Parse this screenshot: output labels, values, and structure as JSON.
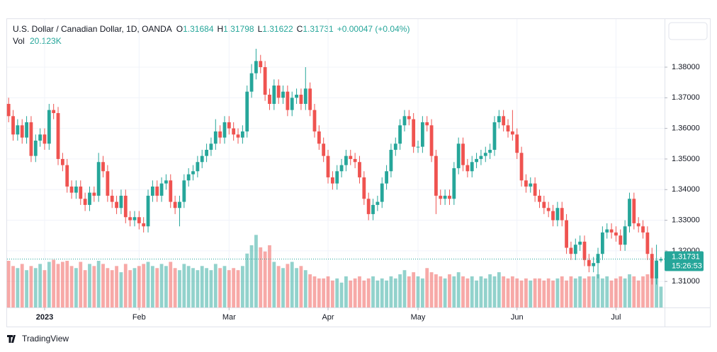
{
  "chart_data": {
    "type": "candlestick",
    "legend": {
      "title": "U.S. Dollar / Canadian Dollar, 1D, OANDA",
      "items": [
        {
          "label": "O",
          "value": "1.31684"
        },
        {
          "label": "H",
          "value": "1.31798"
        },
        {
          "label": "L",
          "value": "1.31622"
        },
        {
          "label": "C",
          "value": "1.31731"
        }
      ],
      "change": "+0.00047 (+0.04%)",
      "volume_label": "Vol",
      "volume_value": "20.123K"
    },
    "up_color": "#26a69a",
    "down_color": "#ef5350",
    "ylim": [
      1.3015,
      1.3957
    ],
    "yticks": [
      {
        "value": 1.31,
        "label": "1.31000"
      },
      {
        "value": 1.32,
        "label": "1.32000"
      },
      {
        "value": 1.33,
        "label": "1.33000"
      },
      {
        "value": 1.34,
        "label": "1.34000"
      },
      {
        "value": 1.35,
        "label": "1.35000"
      },
      {
        "value": 1.36,
        "label": "1.36000"
      },
      {
        "value": 1.37,
        "label": "1.37000"
      },
      {
        "value": 1.38,
        "label": "1.38000"
      }
    ],
    "xticks": [
      {
        "value": 8,
        "label": "2023"
      },
      {
        "value": 29,
        "label": "Feb"
      },
      {
        "value": 49,
        "label": "Mar"
      },
      {
        "value": 71,
        "label": "Apr"
      },
      {
        "value": 91,
        "label": "May"
      },
      {
        "value": 113,
        "label": "Jun"
      },
      {
        "value": 135,
        "label": "Jul"
      }
    ],
    "grid": true,
    "open": [
      1.368,
      1.364,
      1.358,
      1.361,
      1.357,
      1.362,
      1.351,
      1.356,
      1.358,
      1.355,
      1.366,
      1.365,
      1.35,
      1.348,
      1.341,
      1.339,
      1.341,
      1.337,
      1.335,
      1.339,
      1.338,
      1.349,
      1.346,
      1.338,
      1.336,
      1.334,
      1.338,
      1.331,
      1.33,
      1.331,
      1.329,
      1.328,
      1.338,
      1.341,
      1.338,
      1.342,
      1.343,
      1.336,
      1.334,
      1.336,
      1.343,
      1.345,
      1.346,
      1.349,
      1.351,
      1.353,
      1.355,
      1.359,
      1.357,
      1.362,
      1.36,
      1.358,
      1.357,
      1.359,
      1.372,
      1.378,
      1.382,
      1.38,
      1.371,
      1.368,
      1.374,
      1.37,
      1.372,
      1.366,
      1.37,
      1.371,
      1.368,
      1.373,
      1.366,
      1.359,
      1.355,
      1.351,
      1.344,
      1.342,
      1.346,
      1.348,
      1.351,
      1.35,
      1.349,
      1.344,
      1.337,
      1.332,
      1.335,
      1.336,
      1.342,
      1.346,
      1.353,
      1.355,
      1.361,
      1.364,
      1.363,
      1.354,
      1.354,
      1.362,
      1.361,
      1.351,
      1.338,
      1.337,
      1.338,
      1.337,
      1.347,
      1.355,
      1.348,
      1.346,
      1.349,
      1.35,
      1.351,
      1.352,
      1.353,
      1.362,
      1.364,
      1.361,
      1.359,
      1.358,
      1.352,
      1.343,
      1.341,
      1.342,
      1.338,
      1.336,
      1.334,
      1.333,
      1.33,
      1.334,
      1.33,
      1.321,
      1.319,
      1.322,
      1.323,
      1.317,
      1.315,
      1.316,
      1.319,
      1.326,
      1.327,
      1.326,
      1.325,
      1.322,
      1.328,
      1.337,
      1.329,
      1.328,
      1.326,
      1.319,
      1.311,
      1.31684
    ],
    "high": [
      1.37,
      1.366,
      1.363,
      1.363,
      1.364,
      1.364,
      1.358,
      1.36,
      1.36,
      1.368,
      1.368,
      1.367,
      1.352,
      1.35,
      1.343,
      1.343,
      1.343,
      1.339,
      1.341,
      1.341,
      1.352,
      1.351,
      1.348,
      1.34,
      1.338,
      1.34,
      1.34,
      1.333,
      1.333,
      1.333,
      1.331,
      1.34,
      1.343,
      1.343,
      1.344,
      1.345,
      1.345,
      1.338,
      1.338,
      1.345,
      1.347,
      1.348,
      1.351,
      1.353,
      1.355,
      1.357,
      1.363,
      1.361,
      1.364,
      1.364,
      1.362,
      1.36,
      1.361,
      1.374,
      1.381,
      1.386,
      1.384,
      1.382,
      1.373,
      1.376,
      1.376,
      1.374,
      1.374,
      1.372,
      1.373,
      1.373,
      1.38,
      1.375,
      1.368,
      1.361,
      1.357,
      1.353,
      1.346,
      1.348,
      1.35,
      1.353,
      1.353,
      1.352,
      1.351,
      1.346,
      1.339,
      1.337,
      1.338,
      1.344,
      1.348,
      1.355,
      1.357,
      1.363,
      1.366,
      1.366,
      1.365,
      1.356,
      1.364,
      1.364,
      1.363,
      1.353,
      1.34,
      1.34,
      1.34,
      1.349,
      1.357,
      1.357,
      1.35,
      1.351,
      1.352,
      1.353,
      1.354,
      1.355,
      1.364,
      1.366,
      1.366,
      1.363,
      1.366,
      1.36,
      1.354,
      1.345,
      1.344,
      1.344,
      1.34,
      1.338,
      1.336,
      1.335,
      1.336,
      1.336,
      1.332,
      1.323,
      1.324,
      1.325,
      1.325,
      1.319,
      1.318,
      1.321,
      1.328,
      1.329,
      1.329,
      1.328,
      1.327,
      1.33,
      1.339,
      1.339,
      1.331,
      1.33,
      1.328,
      1.321,
      1.322,
      1.31798
    ],
    "low": [
      1.362,
      1.356,
      1.356,
      1.355,
      1.355,
      1.349,
      1.349,
      1.354,
      1.353,
      1.353,
      1.363,
      1.348,
      1.346,
      1.339,
      1.337,
      1.337,
      1.335,
      1.333,
      1.333,
      1.336,
      1.336,
      1.344,
      1.336,
      1.334,
      1.332,
      1.332,
      1.329,
      1.328,
      1.328,
      1.327,
      1.326,
      1.326,
      1.336,
      1.336,
      1.336,
      1.34,
      1.334,
      1.332,
      1.328,
      1.334,
      1.341,
      1.343,
      1.344,
      1.347,
      1.349,
      1.351,
      1.353,
      1.355,
      1.355,
      1.358,
      1.356,
      1.355,
      1.355,
      1.357,
      1.37,
      1.376,
      1.378,
      1.369,
      1.366,
      1.366,
      1.368,
      1.368,
      1.364,
      1.364,
      1.368,
      1.366,
      1.366,
      1.364,
      1.357,
      1.353,
      1.349,
      1.342,
      1.34,
      1.34,
      1.344,
      1.346,
      1.348,
      1.347,
      1.342,
      1.335,
      1.33,
      1.33,
      1.333,
      1.334,
      1.34,
      1.344,
      1.351,
      1.353,
      1.359,
      1.361,
      1.352,
      1.352,
      1.352,
      1.359,
      1.349,
      1.332,
      1.335,
      1.335,
      1.335,
      1.335,
      1.345,
      1.346,
      1.344,
      1.344,
      1.347,
      1.348,
      1.349,
      1.35,
      1.351,
      1.36,
      1.359,
      1.357,
      1.356,
      1.35,
      1.341,
      1.339,
      1.339,
      1.336,
      1.334,
      1.332,
      1.331,
      1.328,
      1.328,
      1.328,
      1.319,
      1.317,
      1.317,
      1.32,
      1.315,
      1.313,
      1.313,
      1.311,
      1.317,
      1.324,
      1.324,
      1.323,
      1.32,
      1.32,
      1.326,
      1.327,
      1.326,
      1.324,
      1.317,
      1.309,
      1.309,
      1.31622
    ],
    "close": [
      1.364,
      1.358,
      1.361,
      1.357,
      1.362,
      1.351,
      1.356,
      1.358,
      1.355,
      1.366,
      1.365,
      1.35,
      1.348,
      1.341,
      1.339,
      1.341,
      1.337,
      1.335,
      1.339,
      1.338,
      1.349,
      1.346,
      1.338,
      1.336,
      1.334,
      1.338,
      1.331,
      1.33,
      1.331,
      1.329,
      1.328,
      1.338,
      1.341,
      1.338,
      1.342,
      1.343,
      1.336,
      1.334,
      1.336,
      1.343,
      1.345,
      1.346,
      1.349,
      1.351,
      1.353,
      1.355,
      1.359,
      1.357,
      1.362,
      1.36,
      1.358,
      1.357,
      1.359,
      1.372,
      1.378,
      1.382,
      1.38,
      1.371,
      1.368,
      1.374,
      1.37,
      1.372,
      1.366,
      1.37,
      1.371,
      1.368,
      1.373,
      1.366,
      1.359,
      1.355,
      1.351,
      1.344,
      1.342,
      1.346,
      1.348,
      1.351,
      1.35,
      1.349,
      1.344,
      1.337,
      1.332,
      1.335,
      1.336,
      1.342,
      1.346,
      1.353,
      1.355,
      1.361,
      1.364,
      1.363,
      1.354,
      1.354,
      1.362,
      1.361,
      1.351,
      1.338,
      1.337,
      1.338,
      1.337,
      1.347,
      1.355,
      1.348,
      1.346,
      1.349,
      1.35,
      1.351,
      1.352,
      1.353,
      1.362,
      1.364,
      1.361,
      1.359,
      1.358,
      1.352,
      1.343,
      1.341,
      1.342,
      1.338,
      1.336,
      1.334,
      1.333,
      1.33,
      1.334,
      1.33,
      1.321,
      1.319,
      1.322,
      1.323,
      1.317,
      1.315,
      1.316,
      1.319,
      1.326,
      1.327,
      1.326,
      1.325,
      1.322,
      1.328,
      1.337,
      1.329,
      1.328,
      1.326,
      1.319,
      1.311,
      1.31684,
      1.31731
    ],
    "volume_lim": [
      0,
      75
    ],
    "volume": [
      45,
      40,
      38,
      42,
      36,
      40,
      38,
      42,
      36,
      44,
      46,
      42,
      44,
      45,
      40,
      38,
      44,
      36,
      42,
      40,
      45,
      42,
      38,
      36,
      40,
      34,
      42,
      36,
      38,
      40,
      42,
      44,
      40,
      38,
      42,
      40,
      44,
      38,
      36,
      42,
      40,
      38,
      36,
      40,
      38,
      36,
      42,
      38,
      40,
      36,
      38,
      36,
      40,
      52,
      60,
      70,
      58,
      54,
      60,
      44,
      40,
      38,
      42,
      44,
      38,
      40,
      36,
      32,
      30,
      28,
      28,
      30,
      26,
      28,
      24,
      30,
      26,
      28,
      30,
      26,
      28,
      30,
      26,
      28,
      26,
      30,
      28,
      32,
      36,
      30,
      34,
      30,
      28,
      38,
      34,
      32,
      30,
      28,
      32,
      30,
      34,
      30,
      28,
      30,
      26,
      30,
      28,
      32,
      30,
      34,
      30,
      28,
      30,
      28,
      26,
      28,
      26,
      28,
      28,
      26,
      28,
      26,
      28,
      30,
      26,
      30,
      28,
      30,
      28,
      30,
      30,
      32,
      28,
      30,
      26,
      28,
      30,
      28,
      32,
      30,
      26,
      30,
      32,
      28,
      30,
      20.123
    ],
    "last_price_label": "1.31731",
    "countdown": "15:26:53",
    "brand": "TradingView"
  }
}
